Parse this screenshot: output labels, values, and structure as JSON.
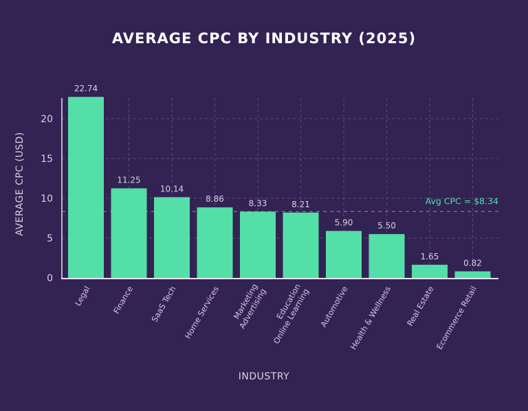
{
  "chart_data": {
    "type": "bar",
    "title": "AVERAGE CPC BY INDUSTRY (2025)",
    "xlabel": "INDUSTRY",
    "ylabel": "AVERAGE CPC (USD)",
    "categories": [
      "Legal",
      "Finance",
      "SaaS Tech",
      "Home Services",
      "Marketing\nAdvertising",
      "Education\nOnline Learning",
      "Automotive",
      "Health & Wellness",
      "Real Estate",
      "Ecommerce Retail"
    ],
    "values": [
      22.74,
      11.25,
      10.14,
      8.86,
      8.33,
      8.21,
      5.9,
      5.5,
      1.65,
      0.82
    ],
    "value_labels": [
      "22.74",
      "11.25",
      "10.14",
      "8.86",
      "8.33",
      "8.21",
      "5.90",
      "5.50",
      "1.65",
      "0.82"
    ],
    "yticks": [
      0,
      5,
      10,
      15,
      20
    ],
    "ylim": [
      0,
      22.6
    ],
    "grid": true,
    "reference_line": {
      "value": 8.34,
      "label": "Avg CPC = $8.34"
    },
    "colors": {
      "background": "#322353",
      "bar": "#55dfa8",
      "reference_line": "#55dfa8",
      "text": "#d8d2e6"
    }
  }
}
